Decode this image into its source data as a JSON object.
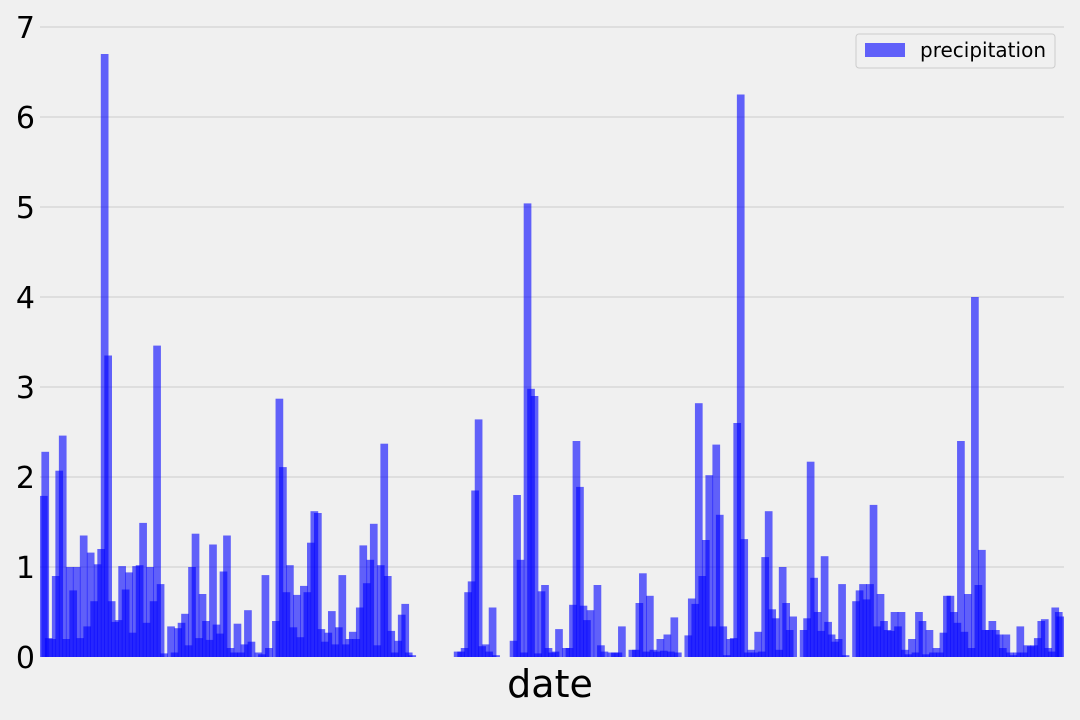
{
  "chart_data": {
    "type": "bar",
    "xlabel": "date",
    "ylabel": "",
    "ylim": [
      0,
      7
    ],
    "yticks": [
      "0",
      "1",
      "2",
      "3",
      "4",
      "5",
      "6",
      "7"
    ],
    "grid": "horizontal",
    "legend_position": "top-right",
    "series": [
      {
        "name": "precipitation",
        "color": "#0000ff",
        "opacity": 0.6,
        "values": [
          1.79,
          2.28,
          0.21,
          0.2,
          0.9,
          2.07,
          2.46,
          0.2,
          1.0,
          0.74,
          1.0,
          0.21,
          1.35,
          0.34,
          1.16,
          0.62,
          1.03,
          1.2,
          6.7,
          3.35,
          0.62,
          0.39,
          0.41,
          1.01,
          0.75,
          0.94,
          0.27,
          1.01,
          1.02,
          1.49,
          0.38,
          1.0,
          0.62,
          3.46,
          0.81,
          0.04,
          0.0,
          0.34,
          0.05,
          0.32,
          0.38,
          0.48,
          0.13,
          1.0,
          1.37,
          0.21,
          0.7,
          0.4,
          0.19,
          1.25,
          0.36,
          0.26,
          0.95,
          1.35,
          0.1,
          0.05,
          0.37,
          0.05,
          0.14,
          0.52,
          0.17,
          0.0,
          0.05,
          0.03,
          0.91,
          0.1,
          0.0,
          0.4,
          2.87,
          2.11,
          0.72,
          1.02,
          0.33,
          0.69,
          0.22,
          0.79,
          0.72,
          1.27,
          1.62,
          1.6,
          0.31,
          0.17,
          0.27,
          0.51,
          0.14,
          0.33,
          0.91,
          0.14,
          0.2,
          0.28,
          0.2,
          0.55,
          1.24,
          0.82,
          1.08,
          1.48,
          0.13,
          1.02,
          2.37,
          0.9,
          0.29,
          0.05,
          0.18,
          0.47,
          0.59,
          0.05,
          0.02,
          0.0,
          0.0,
          0.0,
          0.0,
          0.0,
          0.0,
          0.0,
          0.0,
          0.0,
          0.0,
          0.0,
          0.0,
          0.06,
          0.06,
          0.1,
          0.72,
          0.84,
          1.85,
          2.64,
          0.12,
          0.14,
          0.06,
          0.55,
          0.02,
          0.0,
          0.0,
          0.0,
          0.0,
          0.18,
          1.8,
          1.08,
          0.05,
          5.04,
          2.98,
          2.9,
          0.04,
          0.73,
          0.8,
          0.1,
          0.05,
          0.06,
          0.31,
          0.0,
          0.1,
          0.1,
          0.58,
          2.4,
          1.89,
          0.57,
          0.41,
          0.52,
          0.0,
          0.8,
          0.13,
          0.06,
          0.0,
          0.05,
          0.05,
          0.05,
          0.34,
          0.0,
          0.0,
          0.08,
          0.08,
          0.6,
          0.93,
          0.06,
          0.68,
          0.08,
          0.06,
          0.2,
          0.07,
          0.25,
          0.06,
          0.44,
          0.05,
          0.0,
          0.0,
          0.24,
          0.65,
          0.59,
          2.82,
          0.9,
          1.3,
          2.02,
          0.34,
          2.36,
          1.58,
          0.34,
          0.02,
          0.2,
          0.21,
          2.6,
          6.25,
          1.31,
          0.05,
          0.08,
          0.05,
          0.28,
          0.06,
          1.11,
          1.62,
          0.53,
          0.43,
          0.08,
          1.0,
          0.6,
          0.3,
          0.45,
          0.0,
          0.0,
          0.3,
          0.43,
          2.17,
          0.88,
          0.5,
          0.29,
          1.12,
          0.39,
          0.25,
          0.17,
          0.2,
          0.81,
          0.02,
          0.0,
          0.0,
          0.62,
          0.74,
          0.81,
          0.64,
          0.81,
          1.69,
          0.34,
          0.7,
          0.4,
          0.3,
          0.29,
          0.5,
          0.34,
          0.5,
          0.08,
          0.03,
          0.2,
          0.05,
          0.5,
          0.4,
          0.03,
          0.3,
          0.05,
          0.1,
          0.05,
          0.27,
          0.68,
          0.68,
          0.5,
          0.38,
          2.4,
          0.28,
          0.7,
          0.1,
          4.0,
          0.8,
          1.19,
          0.3,
          0.3,
          0.4,
          0.3,
          0.25,
          0.1,
          0.25,
          0.05,
          0.02,
          0.05,
          0.34,
          0.05,
          0.13,
          0.12,
          0.13,
          0.21,
          0.4,
          0.42,
          0.1,
          0.06,
          0.55,
          0.5,
          0.45
        ]
      }
    ]
  }
}
